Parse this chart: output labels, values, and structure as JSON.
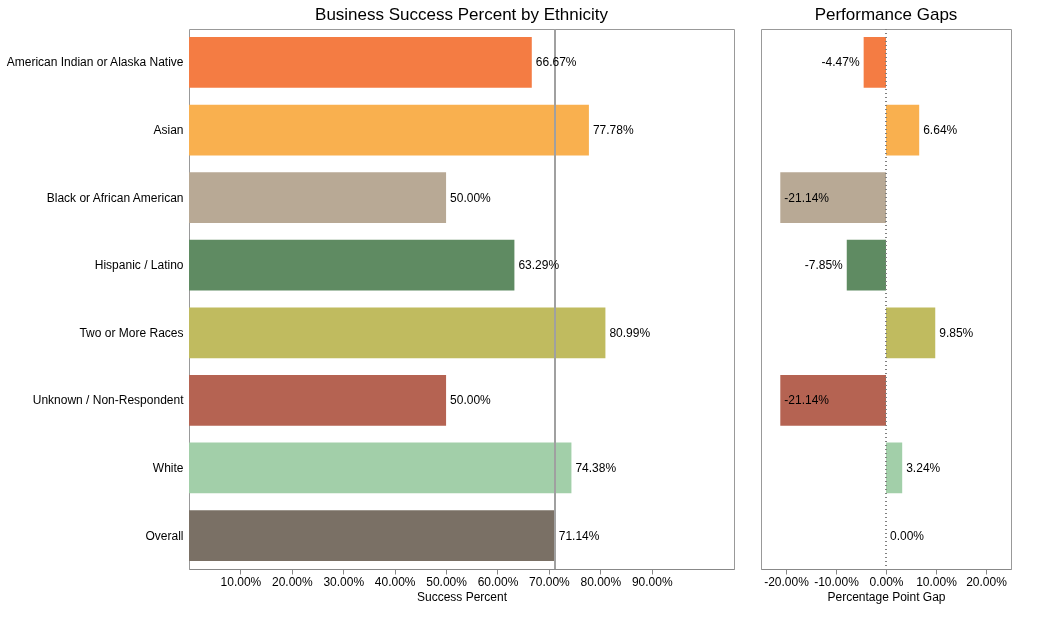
{
  "chart_data": [
    {
      "type": "bar",
      "orientation": "horizontal",
      "title": "Business Success Percent by Ethnicity",
      "xlabel": "Success Percent",
      "categories": [
        "American Indian or Alaska Native",
        "Asian",
        "Black or African American",
        "Hispanic / Latino",
        "Two or More Races",
        "Unknown / Non-Respondent",
        "White",
        "Overall"
      ],
      "values": [
        66.67,
        77.78,
        50.0,
        63.29,
        80.99,
        50.0,
        74.38,
        71.14
      ],
      "colors": [
        "#f47c43",
        "#f9b04f",
        "#b8a995",
        "#5f8b62",
        "#c0bb5f",
        "#b56352",
        "#a2cfa9",
        "#7a7065"
      ],
      "value_labels": [
        "66.67%",
        "77.78%",
        "50.00%",
        "63.29%",
        "80.99%",
        "50.00%",
        "74.38%",
        "71.14%"
      ],
      "xlim": [
        0,
        106
      ],
      "xticks": [
        {
          "value": 10,
          "label": "10.00%"
        },
        {
          "value": 20,
          "label": "20.00%"
        },
        {
          "value": 30,
          "label": "30.00%"
        },
        {
          "value": 40,
          "label": "40.00%"
        },
        {
          "value": 50,
          "label": "50.00%"
        },
        {
          "value": 60,
          "label": "60.00%"
        },
        {
          "value": 70,
          "label": "70.00%"
        },
        {
          "value": 80,
          "label": "80.00%"
        },
        {
          "value": 90,
          "label": "90.00%"
        }
      ],
      "ref_lines": [
        {
          "axis": "x",
          "value": 71.14,
          "color": "#a0a0a0",
          "line_style": "solid"
        }
      ],
      "grid": false
    },
    {
      "type": "bar",
      "orientation": "horizontal",
      "title": "Performance Gaps",
      "xlabel": "Percentage Point Gap",
      "categories": [
        null,
        null,
        null,
        null,
        null,
        null,
        null,
        null
      ],
      "values": [
        -4.47,
        6.64,
        -21.14,
        -7.85,
        9.85,
        -21.14,
        3.24,
        0.0
      ],
      "colors": [
        "#f47c43",
        "#f9b04f",
        "#b8a995",
        "#5f8b62",
        "#c0bb5f",
        "#b56352",
        "#a2cfa9",
        "#7a7065"
      ],
      "value_labels": [
        "-4.47%",
        "6.64%",
        "-21.14%",
        "-7.85%",
        "9.85%",
        "-21.14%",
        "3.24%",
        "0.00%"
      ],
      "xlim": [
        -25,
        25
      ],
      "xticks": [
        {
          "value": -20,
          "label": "-20.00%"
        },
        {
          "value": -10,
          "label": "-10.00%"
        },
        {
          "value": 0,
          "label": "0.00%"
        },
        {
          "value": 10,
          "label": "10.00%"
        },
        {
          "value": 20,
          "label": "20.00%"
        }
      ],
      "ref_lines": [
        {
          "axis": "x",
          "value": 0,
          "color": "#808080",
          "line_style": "dotted"
        }
      ],
      "grid": false,
      "tick_labels": "x"
    }
  ]
}
